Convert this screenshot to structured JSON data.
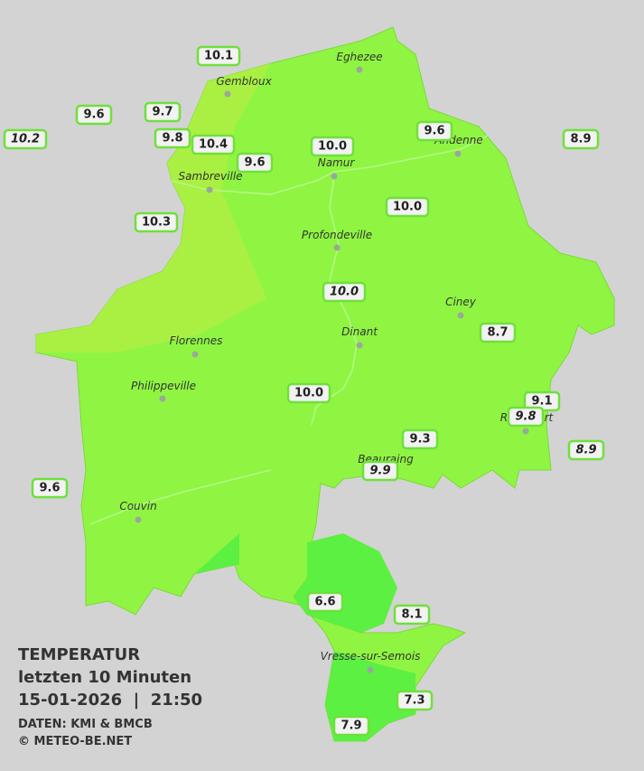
{
  "title": {
    "line1": "TEMPERATUR",
    "line2": "letzten 10 Minuten",
    "line3": "15-01-2026  |  21:50"
  },
  "credits": [
    "DATEN: KMI & BMCB",
    "© METEO-BE.NET"
  ],
  "cities": [
    "Eghezee",
    "Gembloux",
    "Andenne",
    "Namur",
    "Sambreville",
    "Profondeville",
    "Ciney",
    "Dinant",
    "Florennes",
    "Philippeville",
    "Rochefort",
    "Beauraing",
    "Couvin",
    "Vresse-sur-Semois"
  ],
  "stations": [
    "10.1",
    "9.6",
    "9.7",
    "10.2",
    "9.8",
    "10.4",
    "9.6",
    "10.0",
    "9.6",
    "8.9",
    "10.0",
    "10.3",
    "10.0",
    "8.7",
    "10.0",
    "9.1",
    "9.8",
    "9.3",
    "9.9",
    "8.9",
    "9.6",
    "6.6",
    "8.1",
    "7.3",
    "7.9"
  ]
}
